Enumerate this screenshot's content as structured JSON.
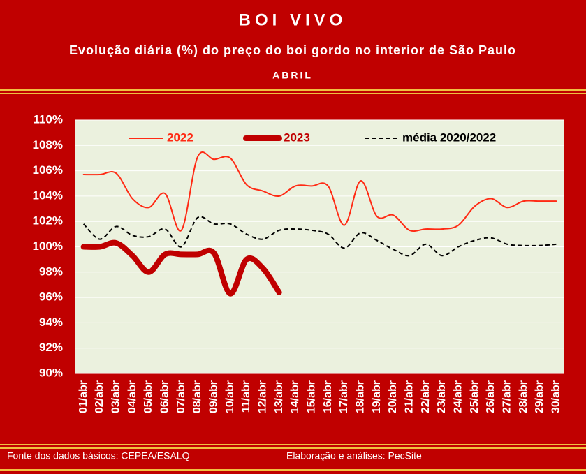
{
  "chart_data": {
    "type": "line",
    "title": "BOI VIVO",
    "subtitle": "Evolução diária (%) do preço do boi gordo no interior de São Paulo",
    "period": "ABRIL",
    "source": "Fonte dos dados básicos: CEPEA/ESALQ",
    "credit": "Elaboração e análises: PecSite",
    "categories": [
      "01/abr",
      "02/abr",
      "03/abr",
      "04/abr",
      "05/abr",
      "06/abr",
      "07/abr",
      "08/abr",
      "09/abr",
      "10/abr",
      "11/abr",
      "12/abr",
      "13/abr",
      "14/abr",
      "15/abr",
      "16/abr",
      "17/abr",
      "18/abr",
      "19/abr",
      "20/abr",
      "21/abr",
      "22/abr",
      "23/abr",
      "24/abr",
      "25/abr",
      "26/abr",
      "27/abr",
      "28/abr",
      "29/abr",
      "30/abr"
    ],
    "series": [
      {
        "name": "2022",
        "color": "#ff2a14",
        "width": 2,
        "dash": false,
        "values": [
          105.7,
          105.7,
          105.8,
          103.8,
          103.1,
          104.2,
          101.3,
          107.1,
          106.9,
          107.0,
          104.9,
          104.4,
          104.0,
          104.8,
          104.8,
          104.8,
          101.7,
          105.2,
          102.4,
          102.5,
          101.3,
          101.4,
          101.4,
          101.7,
          103.2,
          103.8,
          103.1,
          103.6,
          103.6,
          103.6
        ]
      },
      {
        "name": "2023",
        "color": "#c00000",
        "width": 8,
        "dash": false,
        "values": [
          100.0,
          100.0,
          100.3,
          99.3,
          98.0,
          99.4,
          99.4,
          99.4,
          99.5,
          96.3,
          99.0,
          98.3,
          96.4,
          null,
          null,
          null,
          null,
          null,
          null,
          null,
          null,
          null,
          null,
          null,
          null,
          null,
          null,
          null,
          null,
          null
        ]
      },
      {
        "name": "média 2020/2022",
        "color": "#000000",
        "width": 2,
        "dash": true,
        "values": [
          101.8,
          100.6,
          101.6,
          100.9,
          100.8,
          101.4,
          100.0,
          102.3,
          101.8,
          101.8,
          101.0,
          100.6,
          101.3,
          101.4,
          101.3,
          101.0,
          99.9,
          101.1,
          100.5,
          99.8,
          99.3,
          100.2,
          99.3,
          100.0,
          100.5,
          100.7,
          100.2,
          100.1,
          100.1,
          100.2
        ]
      }
    ],
    "ylim": [
      90,
      110
    ],
    "yticks": [
      {
        "value": 90,
        "label": "90%"
      },
      {
        "value": 92,
        "label": "92%"
      },
      {
        "value": 94,
        "label": "94%"
      },
      {
        "value": 96,
        "label": "96%"
      },
      {
        "value": 98,
        "label": "98%"
      },
      {
        "value": 100,
        "label": "100%"
      },
      {
        "value": 102,
        "label": "102%"
      },
      {
        "value": 104,
        "label": "104%"
      },
      {
        "value": 106,
        "label": "106%"
      },
      {
        "value": 108,
        "label": "108%"
      },
      {
        "value": 110,
        "label": "110%"
      }
    ],
    "grid": true,
    "legend": "top"
  }
}
